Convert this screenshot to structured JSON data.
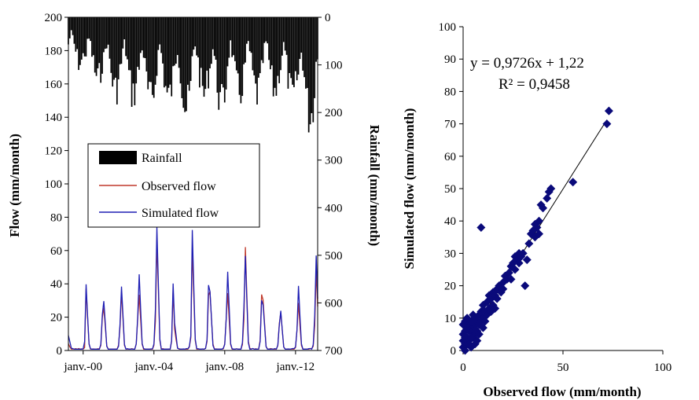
{
  "chart_data": [
    {
      "type": "line",
      "title": "",
      "xlabel": "",
      "ylabel": "Flow (mm/month)",
      "y2label": "Rainfall (mm/month)",
      "ylim": [
        0,
        200
      ],
      "y2lim": [
        700,
        0
      ],
      "y_ticks": [
        "0",
        "20",
        "40",
        "60",
        "80",
        "100",
        "120",
        "140",
        "160",
        "180",
        "200"
      ],
      "y2_ticks": [
        "0",
        "100",
        "200",
        "300",
        "400",
        "500",
        "600",
        "700"
      ],
      "x_ticks": [
        "janv.-00",
        "janv.-04",
        "janv.-08",
        "janv.-12"
      ],
      "x_start": "1999-03",
      "x_months": 170,
      "x_tick_months": [
        10,
        58,
        106,
        154
      ],
      "legend_position": "center-left",
      "legend": [
        "Rainfall",
        "Observed flow",
        "Simulated flow"
      ],
      "series": [
        {
          "name": "Rainfall",
          "kind": "bar",
          "color": "#000000",
          "axis": "right",
          "annual_peaks": [
            120,
            160,
            190,
            200,
            220,
            210,
            240,
            200,
            230,
            200,
            200,
            190,
            210,
            260,
            200
          ]
        },
        {
          "name": "Observed flow",
          "kind": "line",
          "color": "#c0392b",
          "axis": "left",
          "annual_peaks": [
            3,
            36,
            25,
            35,
            33,
            66,
            12,
            61,
            35,
            34,
            62,
            30,
            22,
            28,
            47
          ]
        },
        {
          "name": "Simulated flow",
          "kind": "line",
          "color": "#1f1fb4",
          "axis": "left",
          "annual_peaks": [
            8,
            39,
            29,
            38,
            45,
            74,
            16,
            72,
            35,
            47,
            56,
            27,
            23,
            38,
            56
          ]
        }
      ]
    },
    {
      "type": "scatter",
      "title": "",
      "xlabel": "Observed flow (mm/month)",
      "ylabel": "Simulated flow (mm/month)",
      "xlim": [
        0,
        100
      ],
      "ylim": [
        0,
        100
      ],
      "x_ticks": [
        "0",
        "50",
        "100"
      ],
      "y_ticks": [
        "0",
        "10",
        "20",
        "30",
        "40",
        "50",
        "60",
        "70",
        "80",
        "90",
        "100"
      ],
      "marker_color": "#0a0a7a",
      "equation": "y = 0,9726x + 1,22",
      "r_squared": "R² = 0,9458",
      "trendline": {
        "slope": 0.9726,
        "intercept": 1.22,
        "x_range": [
          0,
          72
        ]
      },
      "points": [
        [
          0,
          1
        ],
        [
          0,
          3
        ],
        [
          1,
          0
        ],
        [
          1,
          2
        ],
        [
          0,
          5
        ],
        [
          1,
          6
        ],
        [
          2,
          8
        ],
        [
          1,
          9
        ],
        [
          0,
          8
        ],
        [
          2,
          10
        ],
        [
          3,
          8
        ],
        [
          4,
          6
        ],
        [
          3,
          3
        ],
        [
          2,
          2
        ],
        [
          4,
          1
        ],
        [
          5,
          4
        ],
        [
          5,
          7
        ],
        [
          6,
          5
        ],
        [
          6,
          8
        ],
        [
          7,
          6
        ],
        [
          7,
          9
        ],
        [
          8,
          8
        ],
        [
          8,
          11
        ],
        [
          9,
          9
        ],
        [
          9,
          12
        ],
        [
          10,
          10
        ],
        [
          10,
          14
        ],
        [
          11,
          12
        ],
        [
          12,
          11
        ],
        [
          12,
          15
        ],
        [
          13,
          17
        ],
        [
          13,
          13
        ],
        [
          14,
          16
        ],
        [
          15,
          14
        ],
        [
          15,
          18
        ],
        [
          16,
          17
        ],
        [
          17,
          16
        ],
        [
          17,
          19
        ],
        [
          18,
          20
        ],
        [
          19,
          18
        ],
        [
          20,
          21
        ],
        [
          20,
          19
        ],
        [
          21,
          23
        ],
        [
          22,
          22
        ],
        [
          23,
          24
        ],
        [
          24,
          22
        ],
        [
          24,
          26
        ],
        [
          25,
          27
        ],
        [
          26,
          25
        ],
        [
          26,
          29
        ],
        [
          27,
          28
        ],
        [
          28,
          30
        ],
        [
          28,
          27
        ],
        [
          29,
          29
        ],
        [
          30,
          30
        ],
        [
          31,
          20
        ],
        [
          32,
          28
        ],
        [
          33,
          33
        ],
        [
          34,
          36
        ],
        [
          35,
          37
        ],
        [
          36,
          35
        ],
        [
          36,
          39
        ],
        [
          37,
          38
        ],
        [
          38,
          40
        ],
        [
          38,
          36
        ],
        [
          39,
          45
        ],
        [
          40,
          44
        ],
        [
          42,
          47
        ],
        [
          43,
          49
        ],
        [
          44,
          50
        ],
        [
          55,
          52
        ],
        [
          72,
          70
        ],
        [
          73,
          74
        ],
        [
          9,
          38
        ],
        [
          3,
          2
        ],
        [
          2,
          4
        ],
        [
          4,
          9
        ],
        [
          5,
          11
        ],
        [
          6,
          2
        ],
        [
          7,
          3
        ],
        [
          8,
          5
        ],
        [
          3,
          6
        ],
        [
          1,
          4
        ],
        [
          2,
          7
        ],
        [
          4,
          4
        ],
        [
          6,
          10
        ],
        [
          10,
          7
        ],
        [
          11,
          9
        ],
        [
          14,
          12
        ],
        [
          16,
          13
        ]
      ]
    }
  ]
}
